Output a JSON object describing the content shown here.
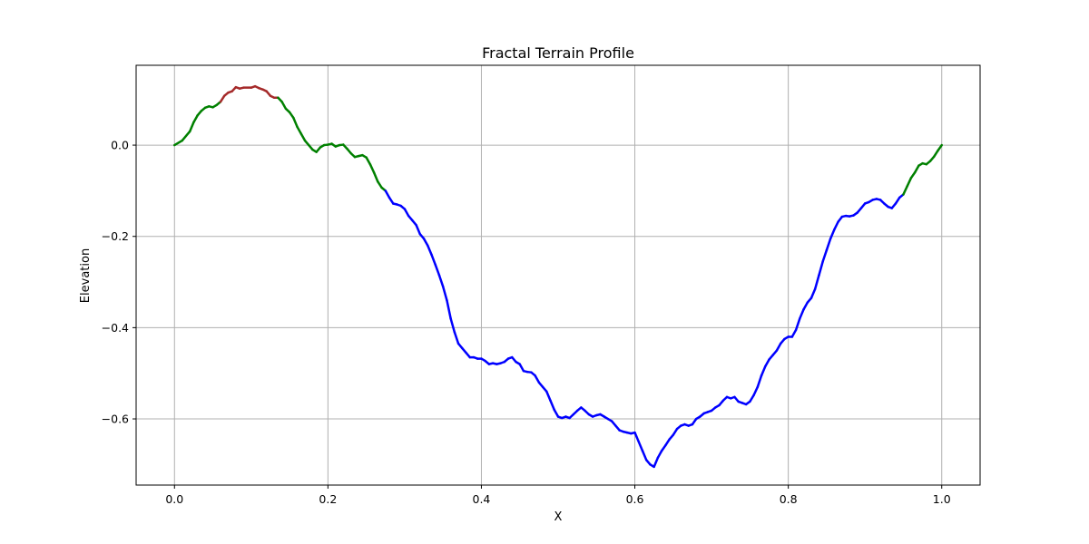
{
  "chart_data": {
    "type": "line",
    "title": "Fractal Terrain Profile",
    "xlabel": "X",
    "ylabel": "Elevation",
    "xlim": [
      -0.05,
      1.05
    ],
    "ylim": [
      -0.745,
      0.175
    ],
    "x_ticks": [
      0.0,
      0.2,
      0.4,
      0.6,
      0.8,
      1.0
    ],
    "x_tick_labels": [
      "0.0",
      "0.2",
      "0.4",
      "0.6",
      "0.8",
      "1.0"
    ],
    "y_ticks": [
      0.0,
      -0.2,
      -0.4,
      -0.6
    ],
    "y_tick_labels": [
      "0.0",
      "−0.2",
      "−0.4",
      "−0.6"
    ],
    "grid": true,
    "legend": false,
    "color_rules": [
      {
        "threshold": 0.1,
        "color": "#a52a2a",
        "comparison": "above"
      },
      {
        "threshold": -0.1,
        "color": "#008000",
        "comparison": "above"
      },
      {
        "threshold": -0.1,
        "color": "#0000ff",
        "comparison": "below"
      }
    ],
    "points": [
      [
        0.0,
        0.0
      ],
      [
        0.01,
        0.01
      ],
      [
        0.02,
        0.03
      ],
      [
        0.025,
        0.05
      ],
      [
        0.03,
        0.065
      ],
      [
        0.035,
        0.075
      ],
      [
        0.04,
        0.082
      ],
      [
        0.045,
        0.085
      ],
      [
        0.05,
        0.083
      ],
      [
        0.055,
        0.088
      ],
      [
        0.06,
        0.095
      ],
      [
        0.065,
        0.108
      ],
      [
        0.07,
        0.115
      ],
      [
        0.075,
        0.118
      ],
      [
        0.08,
        0.127
      ],
      [
        0.085,
        0.124
      ],
      [
        0.09,
        0.126
      ],
      [
        0.1,
        0.126
      ],
      [
        0.105,
        0.129
      ],
      [
        0.11,
        0.125
      ],
      [
        0.115,
        0.122
      ],
      [
        0.12,
        0.118
      ],
      [
        0.125,
        0.108
      ],
      [
        0.13,
        0.104
      ],
      [
        0.135,
        0.104
      ],
      [
        0.14,
        0.095
      ],
      [
        0.145,
        0.08
      ],
      [
        0.15,
        0.072
      ],
      [
        0.155,
        0.06
      ],
      [
        0.16,
        0.04
      ],
      [
        0.165,
        0.025
      ],
      [
        0.17,
        0.01
      ],
      [
        0.175,
        0.0
      ],
      [
        0.18,
        -0.01
      ],
      [
        0.185,
        -0.015
      ],
      [
        0.19,
        -0.005
      ],
      [
        0.195,
        0.0
      ],
      [
        0.2,
        0.001
      ],
      [
        0.205,
        0.003
      ],
      [
        0.21,
        -0.003
      ],
      [
        0.215,
        0.0
      ],
      [
        0.22,
        0.001
      ],
      [
        0.225,
        -0.008
      ],
      [
        0.23,
        -0.018
      ],
      [
        0.235,
        -0.026
      ],
      [
        0.24,
        -0.024
      ],
      [
        0.245,
        -0.022
      ],
      [
        0.25,
        -0.027
      ],
      [
        0.255,
        -0.042
      ],
      [
        0.26,
        -0.06
      ],
      [
        0.265,
        -0.08
      ],
      [
        0.27,
        -0.093
      ],
      [
        0.275,
        -0.1
      ],
      [
        0.28,
        -0.115
      ],
      [
        0.285,
        -0.128
      ],
      [
        0.29,
        -0.13
      ],
      [
        0.295,
        -0.133
      ],
      [
        0.3,
        -0.14
      ],
      [
        0.305,
        -0.155
      ],
      [
        0.31,
        -0.165
      ],
      [
        0.315,
        -0.175
      ],
      [
        0.32,
        -0.195
      ],
      [
        0.325,
        -0.205
      ],
      [
        0.33,
        -0.22
      ],
      [
        0.335,
        -0.24
      ],
      [
        0.34,
        -0.262
      ],
      [
        0.345,
        -0.285
      ],
      [
        0.35,
        -0.31
      ],
      [
        0.355,
        -0.34
      ],
      [
        0.36,
        -0.38
      ],
      [
        0.365,
        -0.41
      ],
      [
        0.37,
        -0.435
      ],
      [
        0.375,
        -0.445
      ],
      [
        0.38,
        -0.455
      ],
      [
        0.385,
        -0.465
      ],
      [
        0.39,
        -0.465
      ],
      [
        0.395,
        -0.468
      ],
      [
        0.4,
        -0.468
      ],
      [
        0.405,
        -0.473
      ],
      [
        0.41,
        -0.48
      ],
      [
        0.415,
        -0.478
      ],
      [
        0.42,
        -0.48
      ],
      [
        0.425,
        -0.478
      ],
      [
        0.43,
        -0.475
      ],
      [
        0.435,
        -0.468
      ],
      [
        0.44,
        -0.465
      ],
      [
        0.445,
        -0.475
      ],
      [
        0.45,
        -0.48
      ],
      [
        0.455,
        -0.495
      ],
      [
        0.46,
        -0.497
      ],
      [
        0.465,
        -0.498
      ],
      [
        0.47,
        -0.505
      ],
      [
        0.475,
        -0.52
      ],
      [
        0.48,
        -0.53
      ],
      [
        0.485,
        -0.54
      ],
      [
        0.49,
        -0.56
      ],
      [
        0.495,
        -0.58
      ],
      [
        0.5,
        -0.595
      ],
      [
        0.505,
        -0.598
      ],
      [
        0.51,
        -0.595
      ],
      [
        0.515,
        -0.598
      ],
      [
        0.52,
        -0.59
      ],
      [
        0.525,
        -0.582
      ],
      [
        0.53,
        -0.575
      ],
      [
        0.535,
        -0.582
      ],
      [
        0.54,
        -0.59
      ],
      [
        0.545,
        -0.595
      ],
      [
        0.55,
        -0.592
      ],
      [
        0.555,
        -0.59
      ],
      [
        0.56,
        -0.595
      ],
      [
        0.565,
        -0.6
      ],
      [
        0.57,
        -0.605
      ],
      [
        0.575,
        -0.615
      ],
      [
        0.58,
        -0.625
      ],
      [
        0.585,
        -0.628
      ],
      [
        0.59,
        -0.63
      ],
      [
        0.595,
        -0.632
      ],
      [
        0.6,
        -0.63
      ],
      [
        0.605,
        -0.65
      ],
      [
        0.61,
        -0.67
      ],
      [
        0.615,
        -0.69
      ],
      [
        0.62,
        -0.7
      ],
      [
        0.625,
        -0.705
      ],
      [
        0.63,
        -0.685
      ],
      [
        0.635,
        -0.67
      ],
      [
        0.64,
        -0.658
      ],
      [
        0.645,
        -0.645
      ],
      [
        0.65,
        -0.635
      ],
      [
        0.655,
        -0.622
      ],
      [
        0.66,
        -0.615
      ],
      [
        0.665,
        -0.612
      ],
      [
        0.67,
        -0.615
      ],
      [
        0.675,
        -0.612
      ],
      [
        0.68,
        -0.6
      ],
      [
        0.685,
        -0.595
      ],
      [
        0.69,
        -0.588
      ],
      [
        0.695,
        -0.585
      ],
      [
        0.7,
        -0.582
      ],
      [
        0.705,
        -0.575
      ],
      [
        0.71,
        -0.57
      ],
      [
        0.715,
        -0.56
      ],
      [
        0.72,
        -0.552
      ],
      [
        0.725,
        -0.555
      ],
      [
        0.73,
        -0.552
      ],
      [
        0.735,
        -0.562
      ],
      [
        0.74,
        -0.565
      ],
      [
        0.745,
        -0.568
      ],
      [
        0.75,
        -0.562
      ],
      [
        0.755,
        -0.548
      ],
      [
        0.76,
        -0.53
      ],
      [
        0.765,
        -0.505
      ],
      [
        0.77,
        -0.485
      ],
      [
        0.775,
        -0.47
      ],
      [
        0.78,
        -0.46
      ],
      [
        0.785,
        -0.45
      ],
      [
        0.79,
        -0.435
      ],
      [
        0.795,
        -0.425
      ],
      [
        0.8,
        -0.42
      ],
      [
        0.805,
        -0.42
      ],
      [
        0.81,
        -0.405
      ],
      [
        0.815,
        -0.38
      ],
      [
        0.82,
        -0.36
      ],
      [
        0.825,
        -0.345
      ],
      [
        0.83,
        -0.335
      ],
      [
        0.835,
        -0.315
      ],
      [
        0.84,
        -0.285
      ],
      [
        0.845,
        -0.255
      ],
      [
        0.85,
        -0.23
      ],
      [
        0.855,
        -0.205
      ],
      [
        0.86,
        -0.185
      ],
      [
        0.865,
        -0.168
      ],
      [
        0.87,
        -0.157
      ],
      [
        0.875,
        -0.155
      ],
      [
        0.88,
        -0.156
      ],
      [
        0.885,
        -0.154
      ],
      [
        0.89,
        -0.148
      ],
      [
        0.895,
        -0.138
      ],
      [
        0.9,
        -0.128
      ],
      [
        0.905,
        -0.125
      ],
      [
        0.91,
        -0.12
      ],
      [
        0.915,
        -0.118
      ],
      [
        0.92,
        -0.12
      ],
      [
        0.925,
        -0.128
      ],
      [
        0.93,
        -0.135
      ],
      [
        0.935,
        -0.138
      ],
      [
        0.94,
        -0.128
      ],
      [
        0.945,
        -0.115
      ],
      [
        0.95,
        -0.108
      ],
      [
        0.955,
        -0.09
      ],
      [
        0.96,
        -0.072
      ],
      [
        0.965,
        -0.06
      ],
      [
        0.97,
        -0.045
      ],
      [
        0.975,
        -0.04
      ],
      [
        0.98,
        -0.042
      ],
      [
        0.985,
        -0.035
      ],
      [
        0.99,
        -0.025
      ],
      [
        0.995,
        -0.012
      ],
      [
        1.0,
        0.0
      ]
    ]
  }
}
